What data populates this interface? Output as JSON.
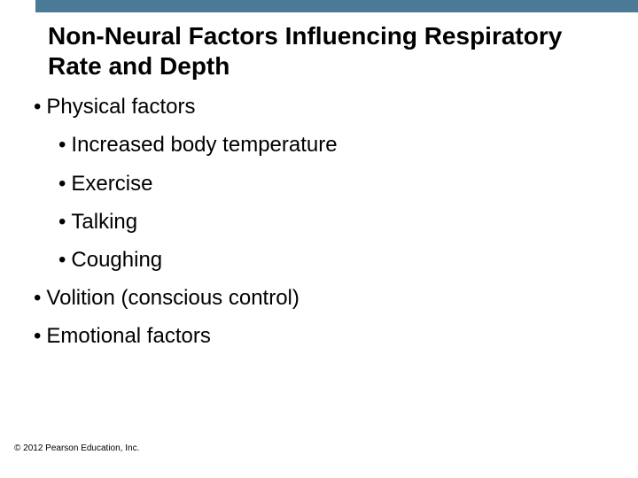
{
  "colors": {
    "topBar": "#4a7a96",
    "background": "#ffffff",
    "text": "#000000"
  },
  "title": "Non-Neural Factors Influencing Respiratory Rate and Depth",
  "bullets": {
    "l1_0": "Physical factors",
    "l2_0": "Increased body temperature",
    "l2_1": "Exercise",
    "l2_2": "Talking",
    "l2_3": "Coughing",
    "l1_1": "Volition (conscious control)",
    "l1_2": "Emotional factors"
  },
  "footer": "© 2012 Pearson Education, Inc."
}
